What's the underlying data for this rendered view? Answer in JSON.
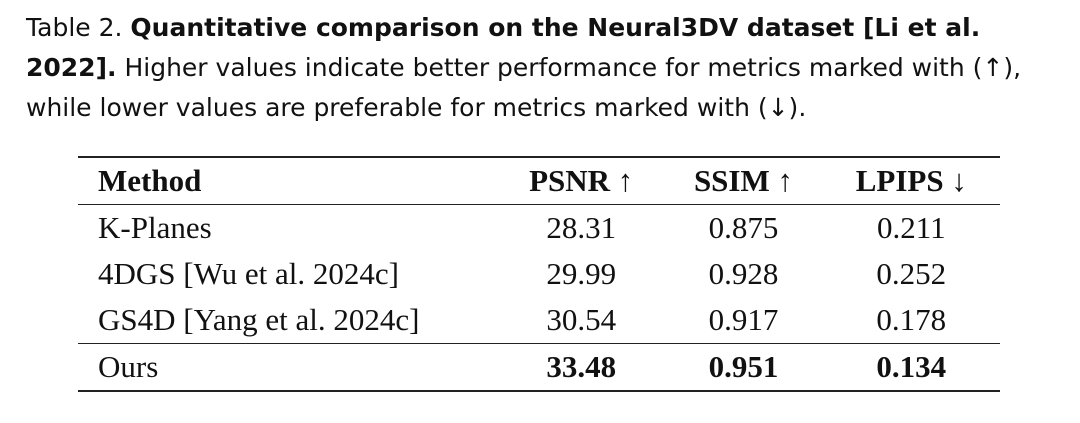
{
  "caption": {
    "label": "Table 2.",
    "title": "Quantitative comparison on the Neural3DV dataset [Li et al. 2022].",
    "text": "Higher values indicate better performance for metrics marked with (↑), while lower values are preferable for metrics marked with (↓)."
  },
  "table": {
    "header": [
      "Method",
      "PSNR ↑",
      "SSIM ↑",
      "LPIPS ↓"
    ],
    "rows": [
      [
        "K-Planes",
        "28.31",
        "0.875",
        "0.211"
      ],
      [
        "4DGS [Wu et al. 2024c]",
        "29.99",
        "0.928",
        "0.252"
      ],
      [
        "GS4D [Yang et al. 2024c]",
        "30.54",
        "0.917",
        "0.178"
      ],
      [
        "Ours",
        "33.48",
        "0.951",
        "0.134"
      ]
    ]
  }
}
